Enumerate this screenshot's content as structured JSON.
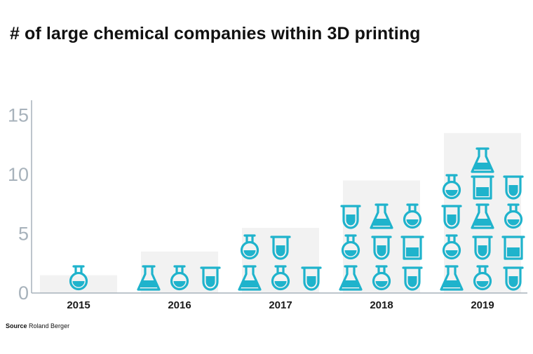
{
  "title": "# of large chemical companies within 3D printing",
  "source": {
    "label": "Source",
    "text": "Roland Berger"
  },
  "colors": {
    "icon": "#1fb3cc",
    "bar_bg": "#f2f2f2",
    "axis": "#a7b2bb",
    "tick_text": "#a7b2bb"
  },
  "chart_data": {
    "type": "bar",
    "categories": [
      "2015",
      "2016",
      "2017",
      "2018",
      "2019"
    ],
    "values": [
      1,
      3,
      5,
      9,
      13
    ],
    "yticks": [
      "0",
      "5",
      "10",
      "15"
    ],
    "ylim": [
      0,
      16
    ],
    "icons": [
      [
        "round"
      ],
      [
        "conical",
        "round",
        "tube"
      ],
      [
        "conical",
        "round",
        "tube",
        "round",
        "tube"
      ],
      [
        "conical",
        "round",
        "tube",
        "round",
        "tube",
        "beaker",
        "tube",
        "conical",
        "round"
      ],
      [
        "conical",
        "round",
        "tube",
        "round",
        "tube",
        "beaker",
        "tube",
        "conical",
        "round",
        "round",
        "beaker",
        "tube",
        "conical"
      ]
    ]
  }
}
